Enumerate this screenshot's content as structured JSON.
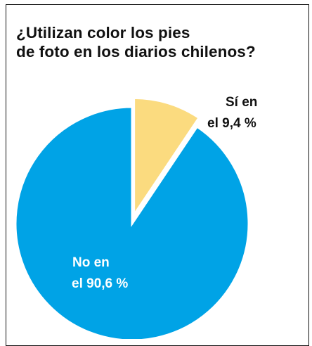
{
  "chart_data": {
    "type": "pie",
    "title_lines": [
      "¿Utilizan color los pies",
      "de foto en los diarios chilenos?"
    ],
    "slices": [
      {
        "label_lines": [
          "Sí en",
          "el 9,4 %"
        ],
        "value": 9.4,
        "color": "#FBDB7F",
        "label_color": "#111111"
      },
      {
        "label_lines": [
          "No en",
          "el 90,6 %"
        ],
        "value": 90.6,
        "color": "#00A3E6",
        "label_color": "#ffffff"
      }
    ],
    "start_angle": "12 o'clock, clockwise",
    "exploded_slice": 0
  }
}
